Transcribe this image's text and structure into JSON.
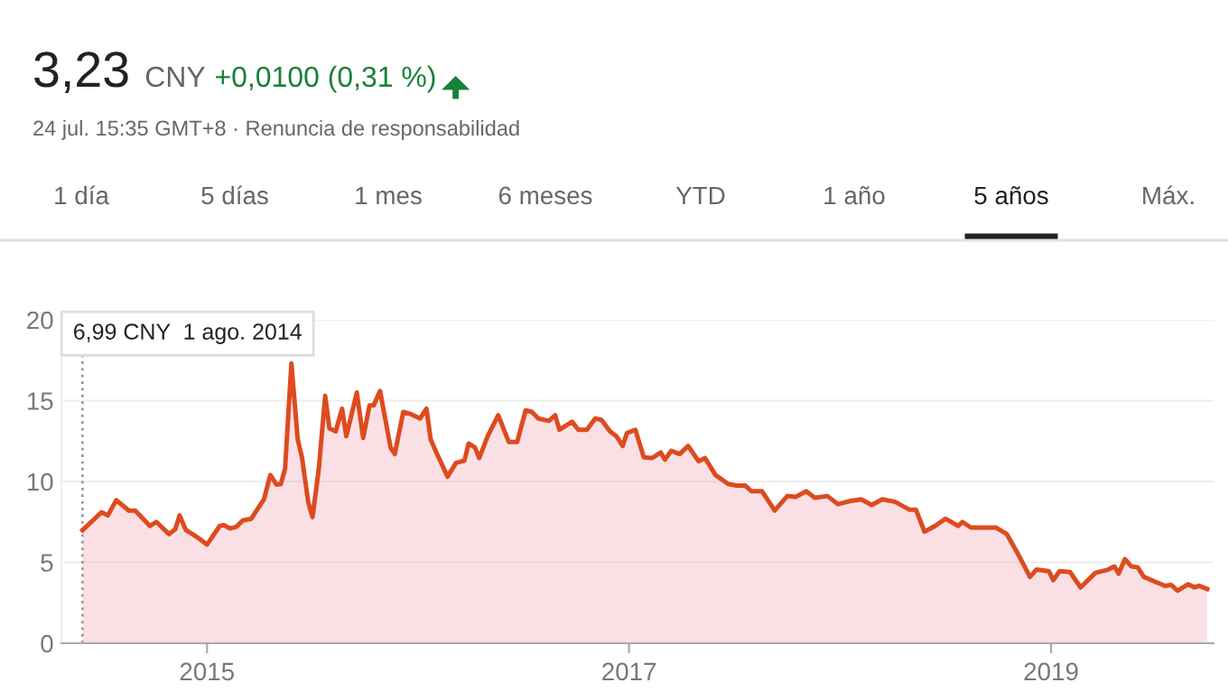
{
  "chart_data": {
    "type": "area",
    "title": "3,23",
    "subtitle": "24 jul. 15:35 GMT+8 · Renuncia de responsabilidad",
    "annotations": [
      "CNY",
      "+0,0100 (0,31 %)",
      "1 día",
      "5 días",
      "1 mes",
      "6 meses",
      "YTD",
      "1 año",
      "5 años",
      "Máx.",
      "6,99 CNY  1 ago. 2014"
    ],
    "x": [
      2014.41,
      2014.5,
      2014.53,
      2014.57,
      2014.63,
      2014.66,
      2014.73,
      2014.76,
      2014.82,
      2014.85,
      2014.87,
      2014.9,
      2014.96,
      2015.0,
      2015.06,
      2015.08,
      2015.11,
      2015.14,
      2015.17,
      2015.21,
      2015.27,
      2015.3,
      2015.33,
      2015.35,
      2015.37,
      2015.4,
      2015.43,
      2015.45,
      2015.48,
      2015.5,
      2015.53,
      2015.56,
      2015.58,
      2015.61,
      2015.64,
      2015.66,
      2015.71,
      2015.74,
      2015.77,
      2015.79,
      2015.82,
      2015.87,
      2015.89,
      2015.93,
      2015.96,
      2016.01,
      2016.04,
      2016.06,
      2016.09,
      2016.11,
      2016.14,
      2016.18,
      2016.22,
      2016.24,
      2016.27,
      2016.29,
      2016.33,
      2016.38,
      2016.43,
      2016.47,
      2016.51,
      2016.54,
      2016.57,
      2016.62,
      2016.65,
      2016.67,
      2016.73,
      2016.76,
      2016.8,
      2016.84,
      2016.87,
      2016.91,
      2016.94,
      2016.97,
      2016.99,
      2017.03,
      2017.07,
      2017.11,
      2017.15,
      2017.17,
      2017.2,
      2017.24,
      2017.28,
      2017.33,
      2017.36,
      2017.41,
      2017.47,
      2017.51,
      2017.55,
      2017.58,
      2017.63,
      2017.69,
      2017.75,
      2017.79,
      2017.84,
      2017.88,
      2017.94,
      2017.99,
      2018.05,
      2018.1,
      2018.15,
      2018.2,
      2018.26,
      2018.33,
      2018.36,
      2018.4,
      2018.45,
      2018.5,
      2018.56,
      2018.58,
      2018.62,
      2018.74,
      2018.79,
      2018.84,
      2018.9,
      2018.93,
      2018.99,
      2019.01,
      2019.04,
      2019.09,
      2019.14,
      2019.21,
      2019.27,
      2019.3,
      2019.32,
      2019.35,
      2019.38,
      2019.41,
      2019.44,
      2019.54,
      2019.57,
      2019.6,
      2019.65,
      2019.68,
      2019.7,
      2019.74
    ],
    "series": [
      {
        "color": "#dd4b1f",
        "values": [
          6.99,
          8.1,
          7.9,
          8.85,
          8.2,
          8.2,
          7.25,
          7.5,
          6.75,
          7.05,
          7.9,
          7.0,
          6.5,
          6.1,
          7.25,
          7.3,
          7.1,
          7.2,
          7.6,
          7.7,
          8.9,
          10.4,
          9.8,
          9.85,
          10.8,
          17.3,
          12.6,
          11.5,
          8.7,
          7.8,
          10.8,
          15.3,
          13.3,
          13.1,
          14.5,
          12.8,
          15.5,
          12.7,
          14.7,
          14.7,
          15.6,
          12.1,
          11.7,
          14.3,
          14.2,
          13.9,
          14.5,
          12.6,
          11.7,
          11.15,
          10.3,
          11.15,
          11.3,
          12.35,
          12.1,
          11.45,
          12.8,
          14.1,
          12.45,
          12.45,
          14.4,
          14.3,
          13.9,
          13.75,
          14.1,
          13.2,
          13.7,
          13.2,
          13.2,
          13.9,
          13.8,
          13.1,
          12.8,
          12.2,
          13.0,
          13.2,
          11.5,
          11.45,
          11.8,
          11.35,
          11.9,
          11.7,
          12.2,
          11.25,
          11.45,
          10.4,
          9.85,
          9.75,
          9.75,
          9.4,
          9.4,
          8.2,
          9.1,
          9.05,
          9.4,
          9.0,
          9.1,
          8.6,
          8.8,
          8.9,
          8.55,
          8.9,
          8.75,
          8.25,
          8.25,
          6.9,
          7.25,
          7.7,
          7.25,
          7.5,
          7.15,
          7.15,
          6.75,
          5.6,
          4.1,
          4.55,
          4.45,
          3.9,
          4.45,
          4.4,
          3.45,
          4.35,
          4.55,
          4.75,
          4.3,
          5.2,
          4.75,
          4.7,
          4.1,
          3.55,
          3.6,
          3.25,
          3.65,
          3.45,
          3.55,
          3.35
        ]
      }
    ],
    "xlim": [
      2014.31,
      2019.77
    ],
    "ylim": [
      0,
      20
    ],
    "xticks": [
      2015,
      2017,
      2019
    ],
    "yticks": [
      0,
      5,
      10,
      15,
      20
    ],
    "ref_lines": [
      {
        "axis": "x",
        "value": 2014.41,
        "color": "#999999",
        "line_style": "dotted"
      }
    ],
    "grid": "y"
  }
}
